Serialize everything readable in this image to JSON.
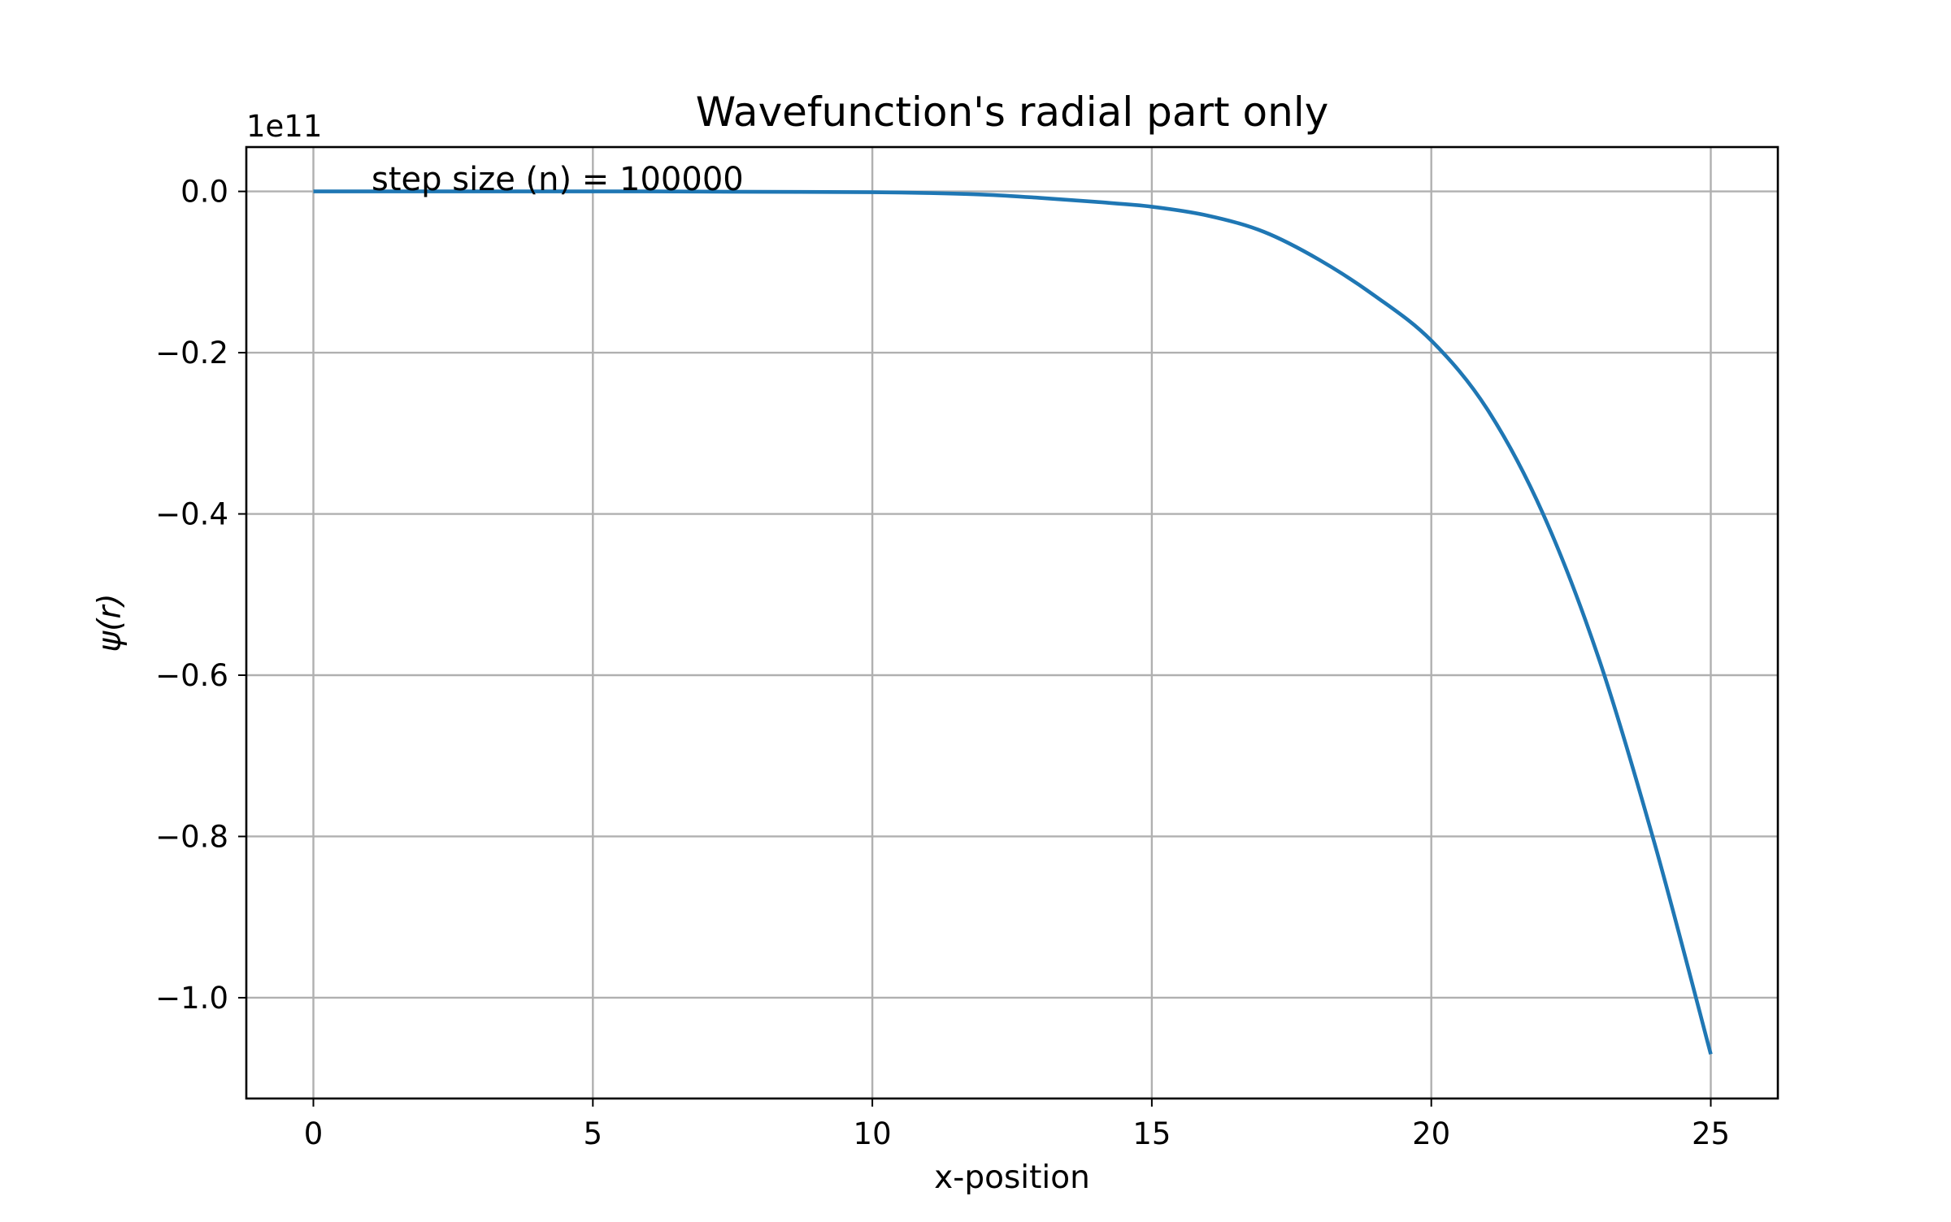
{
  "chart_data": {
    "type": "line",
    "title": "Wavefunction's radial part only",
    "xlabel": "x-position",
    "ylabel": "ψ(r)",
    "y_offset_label": "1e11",
    "annotation": "step size (n) = 100000",
    "xlim": [
      -1.2,
      26.2
    ],
    "ylim": [
      -1.125,
      0.055
    ],
    "xticks": [
      0,
      5,
      10,
      15,
      20,
      25
    ],
    "xtick_labels": [
      "0",
      "5",
      "10",
      "15",
      "20",
      "25"
    ],
    "yticks": [
      0.0,
      -0.2,
      -0.4,
      -0.6,
      -0.8,
      -1.0
    ],
    "ytick_labels": [
      "0.0",
      "−0.2",
      "−0.4",
      "−0.6",
      "−0.8",
      "−1.0"
    ],
    "grid": true,
    "series": [
      {
        "color": "#1f77b4",
        "x": [
          0,
          2,
          4,
          6,
          8,
          10,
          11,
          12,
          13,
          14,
          15,
          16,
          17,
          18,
          19,
          20,
          21,
          22,
          23,
          24,
          25
        ],
        "y": [
          0,
          0,
          0,
          0,
          -0.0005,
          -0.001,
          -0.002,
          -0.004,
          -0.008,
          -0.013,
          -0.019,
          -0.03,
          -0.05,
          -0.085,
          -0.13,
          -0.185,
          -0.27,
          -0.4,
          -0.58,
          -0.81,
          -1.07
        ]
      }
    ]
  }
}
